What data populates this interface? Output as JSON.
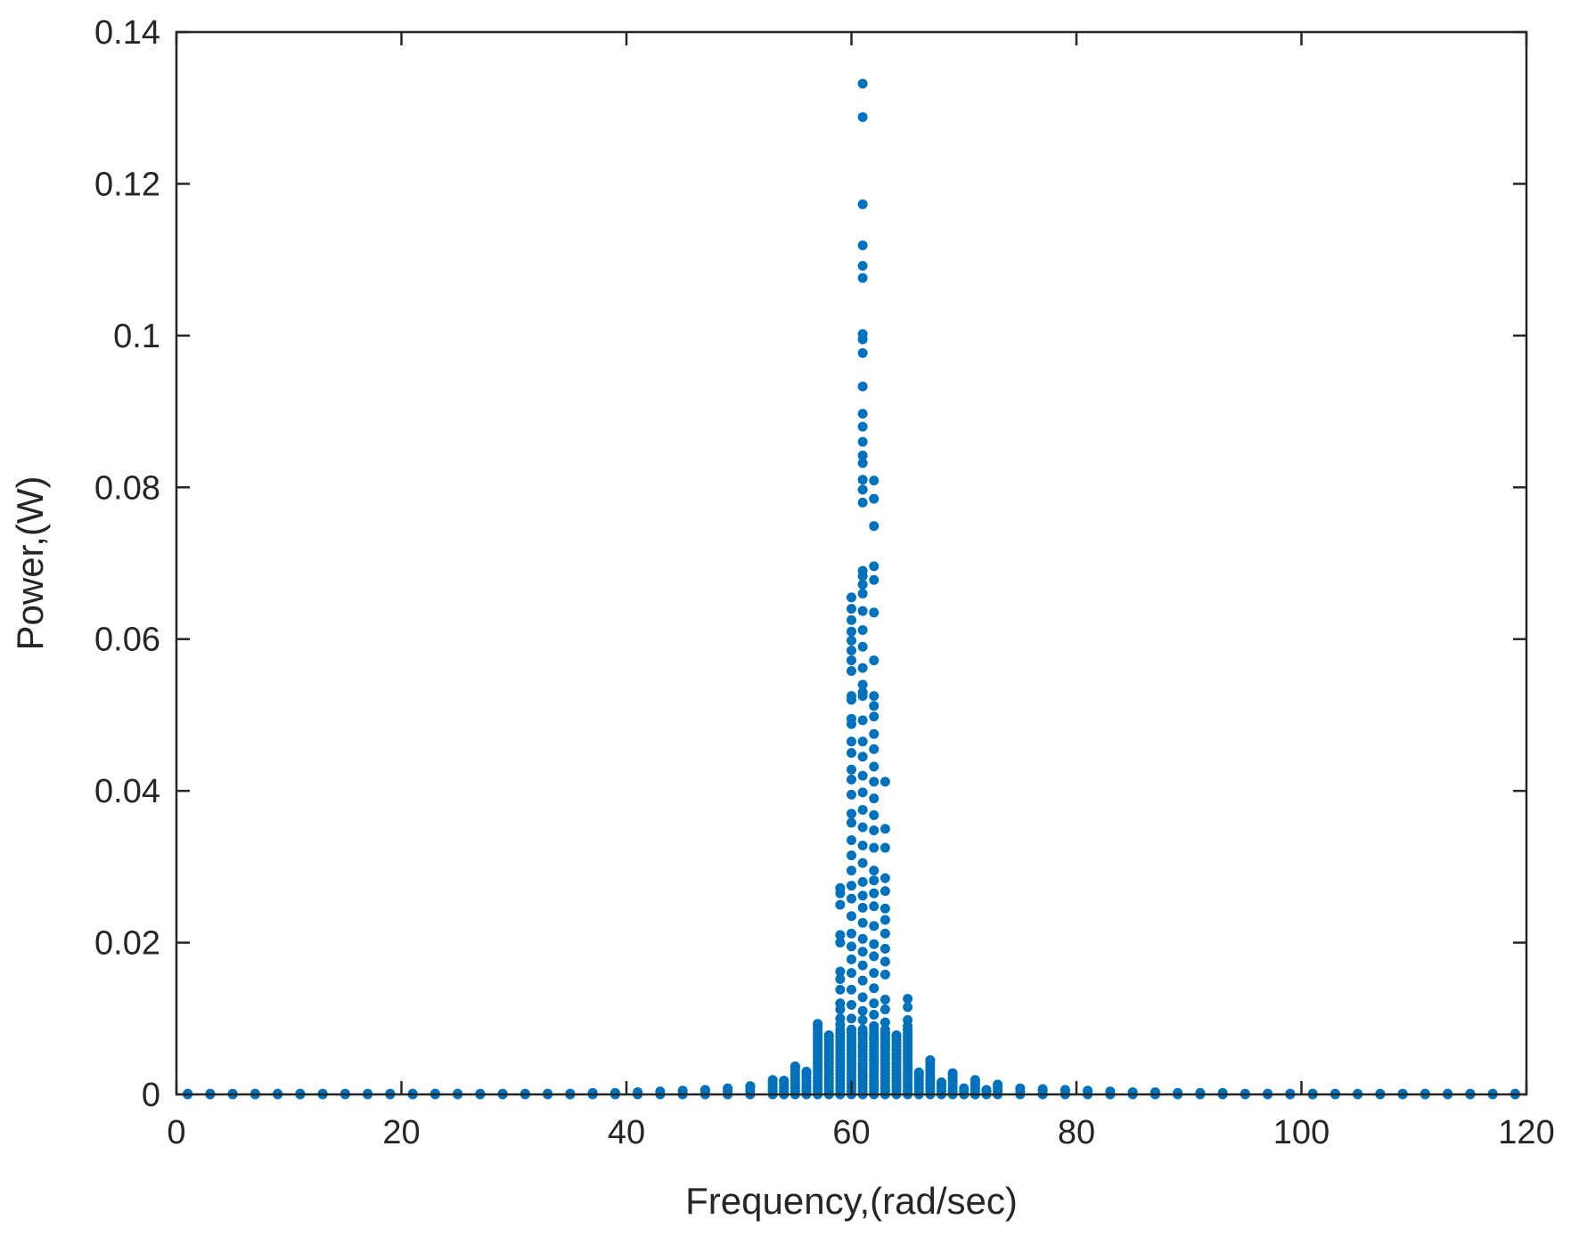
{
  "chart_data": {
    "type": "scatter",
    "xlabel": "Frequency,(rad/sec)",
    "ylabel": "Power,(W)",
    "xlim": [
      0,
      120
    ],
    "ylim": [
      0,
      0.14
    ],
    "xticks": [
      "0",
      "20",
      "40",
      "60",
      "80",
      "100",
      "120"
    ],
    "yticks": [
      "0",
      "0.02",
      "0.04",
      "0.06",
      "0.08",
      "0.1",
      "0.12",
      "0.14"
    ],
    "grid": false,
    "box": true,
    "marker_color": "#0072BD",
    "columns": [
      {
        "x": 1,
        "max": 0.0001
      },
      {
        "x": 3,
        "max": 0.0001
      },
      {
        "x": 5,
        "max": 0.0001
      },
      {
        "x": 7,
        "max": 0.0001
      },
      {
        "x": 9,
        "max": 0.0001
      },
      {
        "x": 11,
        "max": 0.0001
      },
      {
        "x": 13,
        "max": 0.0001
      },
      {
        "x": 15,
        "max": 0.0001
      },
      {
        "x": 17,
        "max": 0.0001
      },
      {
        "x": 19,
        "max": 0.0001
      },
      {
        "x": 21,
        "max": 0.0001
      },
      {
        "x": 23,
        "max": 0.0001
      },
      {
        "x": 25,
        "max": 0.0001
      },
      {
        "x": 27,
        "max": 0.0001
      },
      {
        "x": 29,
        "max": 0.0001
      },
      {
        "x": 31,
        "max": 0.0001
      },
      {
        "x": 33,
        "max": 0.0001
      },
      {
        "x": 35,
        "max": 0.0001
      },
      {
        "x": 37,
        "max": 0.0002
      },
      {
        "x": 39,
        "max": 0.0002
      },
      {
        "x": 41,
        "max": 0.0003
      },
      {
        "x": 43,
        "max": 0.0004
      },
      {
        "x": 45,
        "max": 0.0005
      },
      {
        "x": 47,
        "max": 0.0006
      },
      {
        "x": 49,
        "max": 0.0008
      },
      {
        "x": 51,
        "max": 0.0011
      },
      {
        "x": 53,
        "max": 0.0019
      },
      {
        "x": 54,
        "max": 0.0018
      },
      {
        "x": 55,
        "max": 0.0037
      },
      {
        "x": 56,
        "max": 0.003
      },
      {
        "x": 57,
        "max": 0.0093
      },
      {
        "x": 58,
        "max": 0.0078
      },
      {
        "x": 59,
        "max": 0.0272
      },
      {
        "x": 60,
        "max": 0.0655
      },
      {
        "x": 61,
        "max": 0.1332
      },
      {
        "x": 62,
        "max": 0.0809
      },
      {
        "x": 63,
        "max": 0.0412
      },
      {
        "x": 64,
        "max": 0.0078
      },
      {
        "x": 65,
        "max": 0.0126
      },
      {
        "x": 66,
        "max": 0.0029
      },
      {
        "x": 67,
        "max": 0.0045
      },
      {
        "x": 68,
        "max": 0.0016
      },
      {
        "x": 69,
        "max": 0.0028
      },
      {
        "x": 70,
        "max": 0.0008
      },
      {
        "x": 71,
        "max": 0.0019
      },
      {
        "x": 72,
        "max": 0.0006
      },
      {
        "x": 73,
        "max": 0.0013
      },
      {
        "x": 75,
        "max": 0.0008
      },
      {
        "x": 77,
        "max": 0.0007
      },
      {
        "x": 79,
        "max": 0.0006
      },
      {
        "x": 81,
        "max": 0.0005
      },
      {
        "x": 83,
        "max": 0.0004
      },
      {
        "x": 85,
        "max": 0.0003
      },
      {
        "x": 87,
        "max": 0.0003
      },
      {
        "x": 89,
        "max": 0.0002
      },
      {
        "x": 91,
        "max": 0.0002
      },
      {
        "x": 93,
        "max": 0.0002
      },
      {
        "x": 95,
        "max": 0.0001
      },
      {
        "x": 97,
        "max": 0.0001
      },
      {
        "x": 99,
        "max": 0.0001
      },
      {
        "x": 101,
        "max": 0.0001
      },
      {
        "x": 103,
        "max": 0.0001
      },
      {
        "x": 105,
        "max": 0.0001
      },
      {
        "x": 107,
        "max": 0.0001
      },
      {
        "x": 109,
        "max": 0.0001
      },
      {
        "x": 111,
        "max": 0.0001
      },
      {
        "x": 113,
        "max": 0.0001
      },
      {
        "x": 115,
        "max": 0.0001
      },
      {
        "x": 117,
        "max": 0.0001
      },
      {
        "x": 119,
        "max": 0.0001
      }
    ],
    "scattered_points": [
      {
        "x": 61,
        "y": [
          0.1332,
          0.1288,
          0.1173,
          0.1119,
          0.1092,
          0.1076,
          0.1002,
          0.0995,
          0.0977,
          0.0933,
          0.0897,
          0.088,
          0.086,
          0.0842,
          0.0832,
          0.081,
          0.0797,
          0.078,
          0.069,
          0.0683,
          0.0672,
          0.066,
          0.0637,
          0.0612,
          0.059,
          0.0562,
          0.054,
          0.053,
          0.0525,
          0.0493,
          0.0465,
          0.0445,
          0.042,
          0.0398,
          0.0375,
          0.0352,
          0.0328,
          0.0305,
          0.028,
          0.0262,
          0.0246,
          0.0226,
          0.0205,
          0.0188,
          0.017,
          0.015,
          0.0128,
          0.011,
          0.0098,
          0.008,
          0.0064,
          0.005,
          0.0038,
          0.0025
        ]
      },
      {
        "x": 62,
        "y": [
          0.0809,
          0.0785,
          0.0749,
          0.0696,
          0.0678,
          0.0635,
          0.0572,
          0.0525,
          0.0512,
          0.0498,
          0.0475,
          0.0455,
          0.0432,
          0.0412,
          0.039,
          0.0368,
          0.0348,
          0.0325,
          0.0295,
          0.0282,
          0.0265,
          0.0248,
          0.0222,
          0.0198,
          0.0182,
          0.016,
          0.014,
          0.012,
          0.0105,
          0.009,
          0.0074,
          0.0059,
          0.0045
        ]
      },
      {
        "x": 60,
        "y": [
          0.0655,
          0.064,
          0.0625,
          0.061,
          0.0598,
          0.0585,
          0.0572,
          0.0558,
          0.0525,
          0.052,
          0.0495,
          0.0488,
          0.0465,
          0.045,
          0.0428,
          0.0415,
          0.0395,
          0.037,
          0.0358,
          0.0335,
          0.0315,
          0.0295,
          0.0275,
          0.0258,
          0.0235,
          0.0212,
          0.0195,
          0.0178,
          0.016,
          0.0138,
          0.0118,
          0.01,
          0.0084,
          0.0068,
          0.0052
        ]
      },
      {
        "x": 63,
        "y": [
          0.0412,
          0.035,
          0.0325,
          0.0285,
          0.0268,
          0.0245,
          0.023,
          0.0212,
          0.0192,
          0.0175,
          0.0158,
          0.0125,
          0.0112,
          0.0095,
          0.008,
          0.0063
        ]
      },
      {
        "x": 59,
        "y": [
          0.0272,
          0.0265,
          0.025,
          0.021,
          0.02,
          0.0162,
          0.0152,
          0.0138,
          0.012,
          0.0112,
          0.01,
          0.0092
        ]
      },
      {
        "x": 65,
        "y": [
          0.0126,
          0.0115,
          0.0098,
          0.009
        ]
      }
    ]
  }
}
